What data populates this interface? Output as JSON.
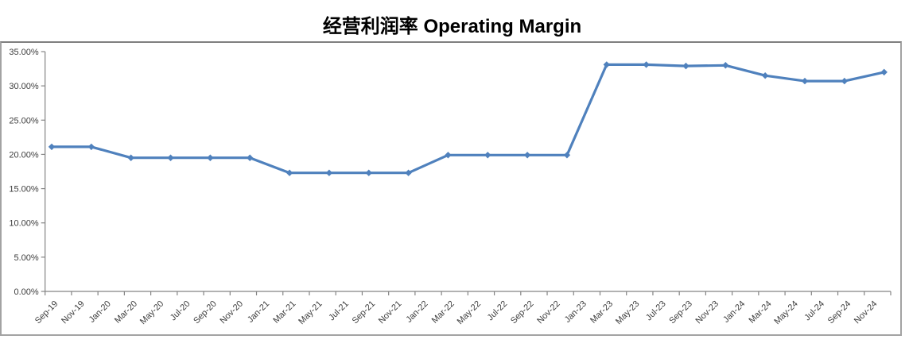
{
  "chart_data": {
    "type": "line",
    "title": "经营利润率 Operating Margin",
    "legend": "none",
    "grid": false,
    "line_color": "#4F81BD",
    "marker": "diamond",
    "xlabel": "",
    "ylabel": "",
    "ylim_pct": [
      0,
      35
    ],
    "y_ticks_pct": [
      0,
      5,
      10,
      15,
      20,
      25,
      30,
      35
    ],
    "y_tick_labels": [
      "0.00%",
      "5.00%",
      "10.00%",
      "15.00%",
      "20.00%",
      "25.00%",
      "30.00%",
      "35.00%"
    ],
    "x_tick_labels": [
      "Sep-19",
      "Nov-19",
      "Jan-20",
      "Mar-20",
      "May-20",
      "Jul-20",
      "Sep-20",
      "Nov-20",
      "Jan-21",
      "Mar-21",
      "May-21",
      "Jul-21",
      "Sep-21",
      "Nov-21",
      "Jan-22",
      "Mar-22",
      "May-22",
      "Jul-22",
      "Sep-22",
      "Nov-22",
      "Jan-23",
      "Mar-23",
      "May-23",
      "Jul-23",
      "Sep-23",
      "Nov-23",
      "Jan-24",
      "Mar-24",
      "May-24",
      "Jul-24",
      "Sep-24",
      "Nov-24"
    ],
    "series": [
      {
        "name": "Operating Margin",
        "x": [
          "Sep-19",
          "Dec-19",
          "Mar-20",
          "Jun-20",
          "Sep-20",
          "Dec-20",
          "Mar-21",
          "Jun-21",
          "Sep-21",
          "Dec-21",
          "Mar-22",
          "Jun-22",
          "Sep-22",
          "Dec-22",
          "Mar-23",
          "Jun-23",
          "Sep-23",
          "Dec-23",
          "Mar-24",
          "Jun-24",
          "Sep-24",
          "Dec-24"
        ],
        "values_pct": [
          21.1,
          21.1,
          19.5,
          19.5,
          19.5,
          19.5,
          17.3,
          17.3,
          17.3,
          17.3,
          19.9,
          19.9,
          19.9,
          19.9,
          33.1,
          33.1,
          32.9,
          33.0,
          31.5,
          30.7,
          30.7,
          32.0
        ]
      }
    ]
  }
}
